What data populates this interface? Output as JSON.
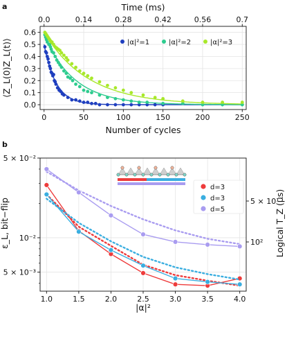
{
  "chart_data": [
    {
      "panel": "a",
      "type": "scatter",
      "xlabel": "Number of cycles",
      "ylabel": "⟨Z_L(0)Z_L(t)⟩",
      "top_xlabel": "Time (ms)",
      "xlim": [
        -5,
        255
      ],
      "ylim": [
        -0.04,
        0.65
      ],
      "xticks": [
        0,
        50,
        100,
        150,
        200,
        250
      ],
      "yticks": [
        0.0,
        0.1,
        0.2,
        0.3,
        0.4,
        0.5,
        0.6
      ],
      "top_ticks": [
        "0.0",
        "0.14",
        "0.28",
        "0.42",
        "0.56",
        "0.7"
      ],
      "grid": true,
      "legend_position": "top-right",
      "series": [
        {
          "name": "|α|²=1",
          "color": "#1f3fbf",
          "points": [
            [
              1,
              0.48
            ],
            [
              2,
              0.44
            ],
            [
              3,
              0.43
            ],
            [
              4,
              0.4
            ],
            [
              5,
              0.38
            ],
            [
              6,
              0.35
            ],
            [
              7,
              0.32
            ],
            [
              8,
              0.3
            ],
            [
              9,
              0.27
            ],
            [
              10,
              0.26
            ],
            [
              11,
              0.24
            ],
            [
              12,
              0.25
            ],
            [
              13,
              0.2
            ],
            [
              14,
              0.19
            ],
            [
              15,
              0.17
            ],
            [
              17,
              0.14
            ],
            [
              19,
              0.12
            ],
            [
              21,
              0.11
            ],
            [
              23,
              0.09
            ],
            [
              25,
              0.08
            ],
            [
              30,
              0.06
            ],
            [
              35,
              0.04
            ],
            [
              40,
              0.04
            ],
            [
              45,
              0.03
            ],
            [
              50,
              0.02
            ],
            [
              55,
              0.02
            ],
            [
              60,
              0.01
            ],
            [
              65,
              0.01
            ],
            [
              70,
              0.0
            ],
            [
              80,
              0.0
            ],
            [
              90,
              0.0
            ],
            [
              100,
              0.0
            ],
            [
              110,
              0.0
            ],
            [
              120,
              0.0
            ],
            [
              130,
              0.0
            ],
            [
              140,
              0.0
            ],
            [
              150,
              0.0
            ]
          ],
          "fit_amplitude": 0.5,
          "fit_decay_cycles": 15
        },
        {
          "name": "|α|²=2",
          "color": "#2ecc8f",
          "points": [
            [
              1,
              0.58
            ],
            [
              2,
              0.56
            ],
            [
              3,
              0.54
            ],
            [
              4,
              0.52
            ],
            [
              5,
              0.55
            ],
            [
              6,
              0.5
            ],
            [
              7,
              0.5
            ],
            [
              8,
              0.48
            ],
            [
              9,
              0.46
            ],
            [
              10,
              0.44
            ],
            [
              12,
              0.43
            ],
            [
              14,
              0.4
            ],
            [
              16,
              0.37
            ],
            [
              18,
              0.35
            ],
            [
              20,
              0.33
            ],
            [
              22,
              0.31
            ],
            [
              25,
              0.28
            ],
            [
              28,
              0.26
            ],
            [
              30,
              0.23
            ],
            [
              33,
              0.22
            ],
            [
              36,
              0.2
            ],
            [
              40,
              0.17
            ],
            [
              45,
              0.15
            ],
            [
              50,
              0.12
            ],
            [
              55,
              0.11
            ],
            [
              60,
              0.1
            ],
            [
              70,
              0.08
            ],
            [
              80,
              0.06
            ],
            [
              90,
              0.05
            ],
            [
              100,
              0.04
            ],
            [
              110,
              0.03
            ],
            [
              120,
              0.02
            ],
            [
              130,
              0.02
            ],
            [
              150,
              0.01
            ],
            [
              175,
              0.01
            ],
            [
              200,
              0.0
            ],
            [
              225,
              0.0
            ],
            [
              250,
              0.0
            ]
          ],
          "fit_amplitude": 0.58,
          "fit_decay_cycles": 38
        },
        {
          "name": "|α|²=3",
          "color": "#a8e82a",
          "points": [
            [
              1,
              0.6
            ],
            [
              2,
              0.59
            ],
            [
              3,
              0.58
            ],
            [
              4,
              0.57
            ],
            [
              5,
              0.56
            ],
            [
              6,
              0.55
            ],
            [
              7,
              0.54
            ],
            [
              8,
              0.53
            ],
            [
              9,
              0.52
            ],
            [
              10,
              0.52
            ],
            [
              12,
              0.5
            ],
            [
              14,
              0.48
            ],
            [
              16,
              0.47
            ],
            [
              18,
              0.46
            ],
            [
              20,
              0.45
            ],
            [
              22,
              0.43
            ],
            [
              25,
              0.41
            ],
            [
              28,
              0.39
            ],
            [
              30,
              0.37
            ],
            [
              35,
              0.34
            ],
            [
              40,
              0.31
            ],
            [
              45,
              0.28
            ],
            [
              50,
              0.26
            ],
            [
              55,
              0.24
            ],
            [
              60,
              0.22
            ],
            [
              70,
              0.19
            ],
            [
              80,
              0.16
            ],
            [
              90,
              0.14
            ],
            [
              100,
              0.12
            ],
            [
              110,
              0.1
            ],
            [
              125,
              0.08
            ],
            [
              140,
              0.06
            ],
            [
              150,
              0.05
            ],
            [
              175,
              0.03
            ],
            [
              200,
              0.02
            ],
            [
              225,
              0.02
            ],
            [
              250,
              0.02
            ]
          ],
          "fit_amplitude": 0.6,
          "fit_decay_cycles": 55
        }
      ]
    },
    {
      "panel": "b",
      "type": "line",
      "xlabel": "|α|²",
      "ylabel": "ε_L, bit−flip",
      "right_ylabel": "Logical T_Z (μs)",
      "x": [
        1.0,
        1.5,
        2.0,
        2.5,
        3.0,
        3.5,
        4.0
      ],
      "xticks": [
        "1.0",
        "1.5",
        "2.0",
        "2.5",
        "3.0",
        "3.5",
        "4.0"
      ],
      "xlim": [
        0.9,
        4.1
      ],
      "y_scale": "log",
      "ylim": [
        0.0034,
        0.05
      ],
      "yticks": [
        "5 × 10⁻²",
        "10⁻²",
        "5 × 10⁻³"
      ],
      "right_yticks": [
        "5 × 10¹",
        "10²"
      ],
      "grid": true,
      "legend_position": "top-right",
      "series": [
        {
          "name": "d=3",
          "color": "#ee3b3b",
          "values": [
            0.029,
            0.0115,
            0.0072,
            0.0049,
            0.0039,
            0.0038,
            0.0044
          ],
          "fit": [
            0.024,
            0.0125,
            0.0085,
            0.0058,
            0.0047,
            0.0042,
            0.0038
          ]
        },
        {
          "name": "d=3",
          "color": "#3aaee0",
          "values": [
            0.024,
            0.0113,
            0.0078,
            0.0057,
            0.0044,
            0.0041,
            0.0039
          ],
          "fit": [
            0.022,
            0.0135,
            0.0093,
            0.0068,
            0.0055,
            0.0048,
            0.0043
          ]
        },
        {
          "name": "d=5",
          "color": "#a99cf0",
          "values": [
            0.04,
            0.025,
            0.0157,
            0.0107,
            0.0092,
            0.0087,
            0.0084
          ],
          "fit": [
            0.038,
            0.026,
            0.019,
            0.0145,
            0.0116,
            0.0098,
            0.0088
          ]
        }
      ]
    }
  ],
  "panel_labels": {
    "a": "a",
    "b": "b"
  }
}
